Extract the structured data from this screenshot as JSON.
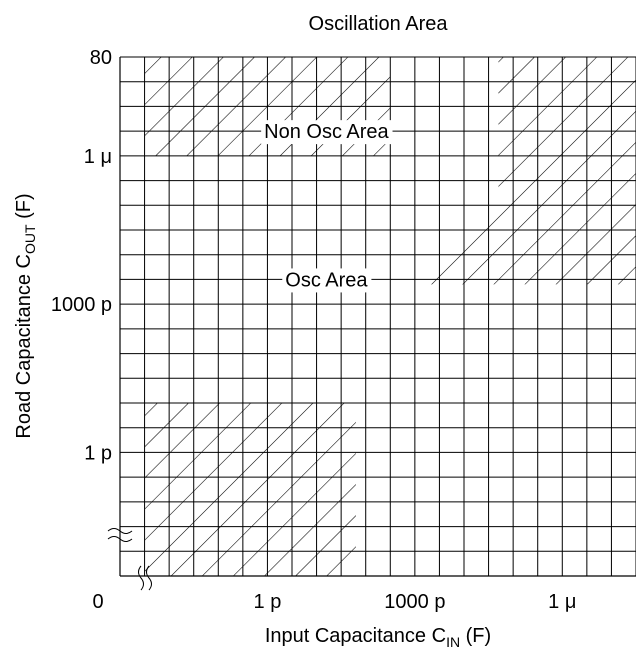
{
  "chart_data": {
    "type": "area",
    "title": "Oscillation Area",
    "xlabel": {
      "main": "Input Capacitance C",
      "sub": "IN",
      "unit": " (F)"
    },
    "ylabel": {
      "main": "Road Capacitance C",
      "sub": "OUT",
      "unit": " (F)"
    },
    "x_scale": "log",
    "y_scale": "log",
    "x_ticks": [
      {
        "label": "0",
        "decade": -15
      },
      {
        "label": "1 p",
        "decade": -12
      },
      {
        "label": "1000 p",
        "decade": -9
      },
      {
        "label": "1 μ",
        "decade": -6
      }
    ],
    "y_ticks": [
      {
        "label": "80",
        "decade": -4
      },
      {
        "label": "1 μ",
        "decade": -6
      },
      {
        "label": "1000 p",
        "decade": -9
      },
      {
        "label": "1 p",
        "decade": -12
      }
    ],
    "xlim_decades": [
      -15,
      -4.5
    ],
    "ylim_decades": [
      -14.5,
      -4
    ],
    "region_labels": [
      {
        "text": "Non Osc Area",
        "x_decade": -10.8,
        "y_decade": -5.5
      },
      {
        "text": "Osc Area",
        "x_decade": -10.8,
        "y_decade": -8.5
      }
    ],
    "hatched_regions": [
      {
        "name": "top-left",
        "points": [
          [
            -14.5,
            -4
          ],
          [
            -9.5,
            -4
          ],
          [
            -9.5,
            -6
          ],
          [
            -14.5,
            -6
          ]
        ]
      },
      {
        "name": "right",
        "points": [
          [
            -7.3,
            -4
          ],
          [
            -4.5,
            -4
          ],
          [
            -4.5,
            -8.6
          ],
          [
            -9.0,
            -8.6
          ],
          [
            -7.3,
            -7.0
          ]
        ]
      },
      {
        "name": "bottom-left",
        "points": [
          [
            -14.5,
            -11.0
          ],
          [
            -10.2,
            -11.0
          ],
          [
            -10.2,
            -14.5
          ],
          [
            -14.5,
            -14.5
          ]
        ]
      }
    ],
    "grid": true
  }
}
